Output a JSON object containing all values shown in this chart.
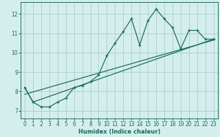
{
  "xlabel": "Humidex (Indice chaleur)",
  "bg_color": "#d4eeee",
  "grid_color": "#aacccc",
  "line_color": "#1a6b5a",
  "xlim": [
    -0.5,
    23.5
  ],
  "ylim": [
    6.6,
    12.6
  ],
  "xticks": [
    0,
    1,
    2,
    3,
    4,
    5,
    6,
    7,
    8,
    9,
    10,
    11,
    12,
    13,
    14,
    15,
    16,
    17,
    18,
    19,
    20,
    21,
    22,
    23
  ],
  "yticks": [
    7,
    8,
    9,
    10,
    11,
    12
  ],
  "series1_x": [
    0,
    1,
    2,
    3,
    4,
    5,
    6,
    7,
    8,
    9,
    10,
    11,
    12,
    13,
    14,
    15,
    16,
    17,
    18,
    19,
    20,
    21,
    22,
    23
  ],
  "series1_y": [
    8.2,
    7.45,
    7.2,
    7.2,
    7.45,
    7.65,
    8.2,
    8.3,
    8.5,
    8.85,
    9.85,
    10.5,
    11.1,
    11.75,
    10.4,
    11.65,
    12.25,
    11.75,
    11.3,
    10.2,
    11.15,
    11.15,
    10.7,
    10.7
  ],
  "trend1_x": [
    0,
    23
  ],
  "trend1_y": [
    7.85,
    10.65
  ],
  "trend2_x": [
    0,
    1,
    23
  ],
  "trend2_y": [
    8.2,
    7.45,
    10.7
  ]
}
